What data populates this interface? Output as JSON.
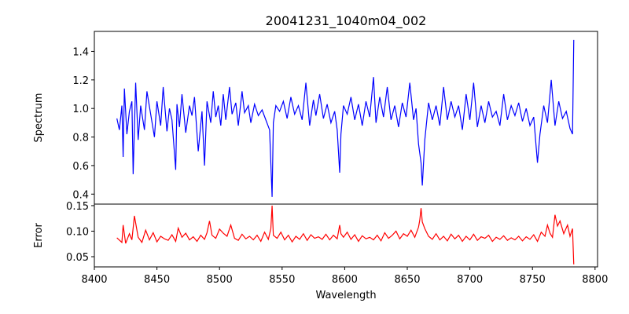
{
  "chart_data": {
    "type": "line",
    "title": "20041231_1040m04_002",
    "xlabel": "Wavelength",
    "xlim": [
      8400,
      8802
    ],
    "xticks": [
      8400,
      8450,
      8500,
      8550,
      8600,
      8650,
      8700,
      8750,
      8800
    ],
    "panels": [
      {
        "name": "spectrum",
        "ylabel": "Spectrum",
        "ylim": [
          0.33,
          1.54
        ],
        "yticks": [
          0.4,
          0.6,
          0.8,
          1.0,
          1.2,
          1.4
        ],
        "color": "#0000ff",
        "x": [
          8418,
          8420,
          8422,
          8423,
          8424,
          8426,
          8428,
          8430,
          8431,
          8433,
          8435,
          8437,
          8440,
          8442,
          8445,
          8448,
          8450,
          8453,
          8455,
          8458,
          8460,
          8462,
          8465,
          8466,
          8468,
          8470,
          8473,
          8476,
          8478,
          8480,
          8483,
          8486,
          8488,
          8490,
          8493,
          8495,
          8497,
          8499,
          8501,
          8503,
          8505,
          8508,
          8510,
          8513,
          8515,
          8518,
          8520,
          8523,
          8525,
          8528,
          8531,
          8534,
          8537,
          8540,
          8542,
          8543,
          8545,
          8548,
          8551,
          8554,
          8557,
          8560,
          8563,
          8566,
          8569,
          8572,
          8575,
          8577,
          8580,
          8583,
          8586,
          8589,
          8592,
          8594,
          8596,
          8597,
          8599,
          8602,
          8605,
          8608,
          8611,
          8614,
          8617,
          8620,
          8623,
          8625,
          8628,
          8631,
          8634,
          8637,
          8640,
          8643,
          8646,
          8649,
          8652,
          8655,
          8657,
          8659,
          8661,
          8662,
          8664,
          8667,
          8670,
          8673,
          8676,
          8679,
          8682,
          8685,
          8688,
          8691,
          8694,
          8697,
          8700,
          8703,
          8706,
          8709,
          8712,
          8715,
          8718,
          8721,
          8724,
          8727,
          8730,
          8733,
          8736,
          8739,
          8742,
          8745,
          8748,
          8751,
          8754,
          8756,
          8759,
          8762,
          8765,
          8768,
          8771,
          8774,
          8777,
          8780,
          8782,
          8783
        ],
        "y": [
          0.93,
          0.85,
          1.02,
          0.66,
          1.14,
          0.82,
          0.98,
          1.05,
          0.54,
          1.18,
          0.78,
          1.02,
          0.85,
          1.12,
          0.96,
          0.8,
          1.05,
          0.88,
          1.15,
          0.84,
          1.0,
          0.92,
          0.57,
          1.03,
          0.87,
          1.1,
          0.83,
          1.02,
          0.95,
          1.08,
          0.7,
          0.98,
          0.6,
          1.05,
          0.9,
          1.12,
          0.94,
          1.02,
          0.88,
          1.1,
          0.92,
          1.15,
          0.96,
          1.04,
          0.88,
          1.12,
          0.97,
          1.02,
          0.9,
          1.03,
          0.95,
          0.99,
          0.92,
          0.85,
          0.38,
          0.9,
          1.02,
          0.98,
          1.05,
          0.93,
          1.08,
          0.96,
          1.02,
          0.92,
          1.18,
          0.88,
          1.06,
          0.95,
          1.1,
          0.93,
          1.03,
          0.9,
          0.98,
          0.85,
          0.55,
          0.82,
          1.02,
          0.96,
          1.08,
          0.92,
          1.03,
          0.88,
          1.05,
          0.94,
          1.22,
          0.9,
          1.08,
          0.94,
          1.15,
          0.92,
          1.02,
          0.87,
          1.04,
          0.94,
          1.18,
          0.92,
          1.0,
          0.75,
          0.62,
          0.46,
          0.78,
          1.04,
          0.92,
          1.02,
          0.88,
          1.15,
          0.92,
          1.05,
          0.94,
          1.02,
          0.85,
          1.1,
          0.92,
          1.18,
          0.87,
          1.02,
          0.9,
          1.05,
          0.94,
          0.98,
          0.88,
          1.1,
          0.92,
          1.02,
          0.95,
          1.04,
          0.91,
          1.0,
          0.88,
          0.94,
          0.62,
          0.82,
          1.02,
          0.9,
          1.2,
          0.88,
          1.05,
          0.93,
          0.98,
          0.86,
          0.82,
          1.48
        ]
      },
      {
        "name": "error",
        "ylabel": "Error",
        "ylim": [
          0.03,
          0.153
        ],
        "yticks": [
          0.05,
          0.1,
          0.15
        ],
        "color": "#ff0000",
        "x": [
          8418,
          8422,
          8423,
          8425,
          8428,
          8430,
          8432,
          8435,
          8438,
          8441,
          8444,
          8447,
          8450,
          8453,
          8456,
          8459,
          8462,
          8465,
          8467,
          8470,
          8473,
          8476,
          8479,
          8482,
          8485,
          8488,
          8490,
          8492,
          8494,
          8497,
          8500,
          8503,
          8506,
          8509,
          8512,
          8515,
          8518,
          8521,
          8524,
          8527,
          8530,
          8533,
          8536,
          8539,
          8541,
          8542,
          8543,
          8546,
          8549,
          8552,
          8555,
          8558,
          8561,
          8564,
          8567,
          8570,
          8573,
          8576,
          8579,
          8582,
          8585,
          8588,
          8591,
          8594,
          8596,
          8597,
          8599,
          8602,
          8605,
          8608,
          8611,
          8614,
          8617,
          8620,
          8623,
          8626,
          8629,
          8632,
          8635,
          8638,
          8641,
          8644,
          8647,
          8650,
          8653,
          8656,
          8659,
          8660,
          8661,
          8662,
          8664,
          8667,
          8670,
          8673,
          8676,
          8679,
          8682,
          8685,
          8688,
          8691,
          8694,
          8697,
          8700,
          8703,
          8706,
          8709,
          8712,
          8715,
          8718,
          8721,
          8724,
          8727,
          8730,
          8733,
          8736,
          8739,
          8742,
          8745,
          8748,
          8751,
          8754,
          8757,
          8760,
          8762,
          8764,
          8766,
          8768,
          8770,
          8772,
          8775,
          8778,
          8780,
          8782,
          8783
        ],
        "y": [
          0.087,
          0.078,
          0.112,
          0.076,
          0.095,
          0.083,
          0.13,
          0.088,
          0.078,
          0.102,
          0.083,
          0.097,
          0.079,
          0.09,
          0.085,
          0.082,
          0.093,
          0.08,
          0.106,
          0.088,
          0.096,
          0.083,
          0.089,
          0.08,
          0.092,
          0.084,
          0.097,
          0.12,
          0.092,
          0.086,
          0.104,
          0.096,
          0.09,
          0.112,
          0.086,
          0.082,
          0.094,
          0.085,
          0.09,
          0.083,
          0.092,
          0.08,
          0.098,
          0.084,
          0.105,
          0.15,
          0.092,
          0.086,
          0.098,
          0.083,
          0.092,
          0.079,
          0.09,
          0.084,
          0.095,
          0.082,
          0.093,
          0.086,
          0.089,
          0.084,
          0.094,
          0.083,
          0.092,
          0.085,
          0.112,
          0.095,
          0.088,
          0.098,
          0.084,
          0.093,
          0.08,
          0.091,
          0.085,
          0.088,
          0.083,
          0.092,
          0.081,
          0.097,
          0.086,
          0.092,
          0.1,
          0.085,
          0.095,
          0.09,
          0.102,
          0.088,
          0.108,
          0.122,
          0.145,
          0.118,
          0.105,
          0.09,
          0.084,
          0.095,
          0.083,
          0.09,
          0.081,
          0.094,
          0.085,
          0.092,
          0.08,
          0.09,
          0.083,
          0.094,
          0.082,
          0.089,
          0.086,
          0.092,
          0.08,
          0.088,
          0.084,
          0.091,
          0.082,
          0.087,
          0.083,
          0.09,
          0.081,
          0.089,
          0.084,
          0.093,
          0.08,
          0.098,
          0.09,
          0.112,
          0.096,
          0.088,
          0.132,
          0.11,
          0.12,
          0.095,
          0.112,
          0.09,
          0.105,
          0.035
        ]
      }
    ]
  }
}
